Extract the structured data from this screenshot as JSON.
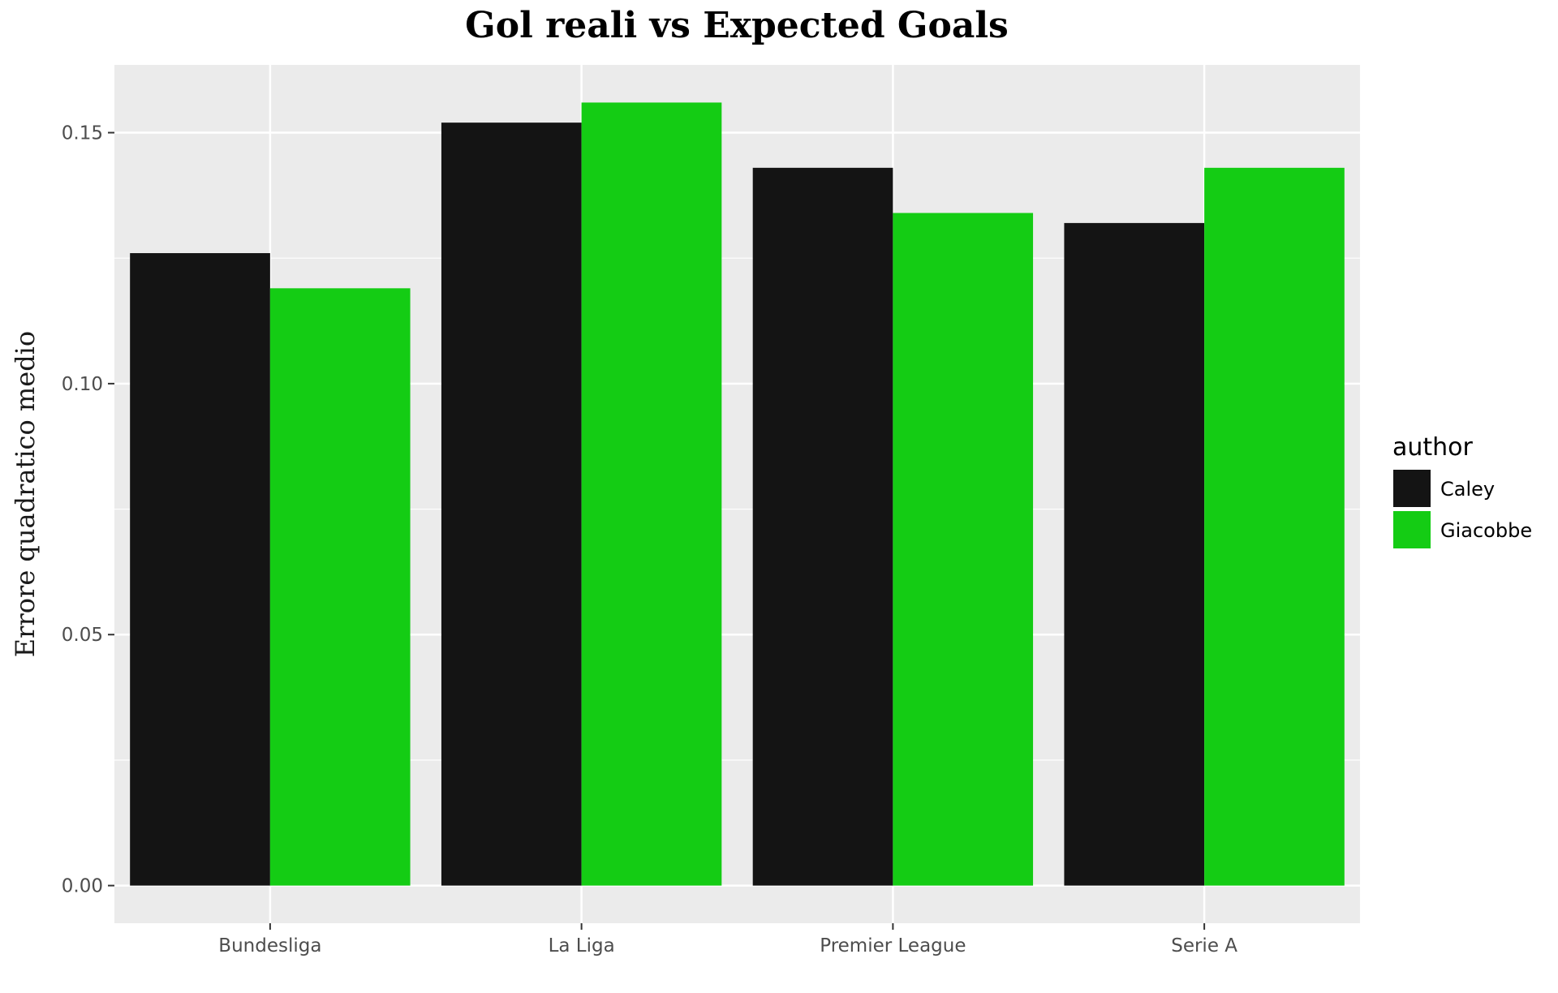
{
  "chart_data": {
    "type": "bar",
    "title": "Gol reali vs Expected Goals",
    "xlabel": "",
    "ylabel": "Errore quadratico medio",
    "categories": [
      "Bundesliga",
      "La Liga",
      "Premier League",
      "Serie A"
    ],
    "series": [
      {
        "name": "Caley",
        "color": "#141414",
        "values": [
          0.126,
          0.152,
          0.143,
          0.132
        ]
      },
      {
        "name": "Giacobbe",
        "color": "#14cc14",
        "values": [
          0.119,
          0.156,
          0.134,
          0.143
        ]
      }
    ],
    "ylim": [
      -0.0075,
      0.1635
    ],
    "yticks": [
      0.0,
      0.05,
      0.1,
      0.15
    ],
    "ytick_labels": [
      "0.00",
      "0.05",
      "0.10",
      "0.15"
    ],
    "grid": true,
    "legend": {
      "title": "author",
      "position": "right"
    },
    "colors": {
      "panel_background": "#ebebeb",
      "grid": "#ffffff"
    }
  }
}
